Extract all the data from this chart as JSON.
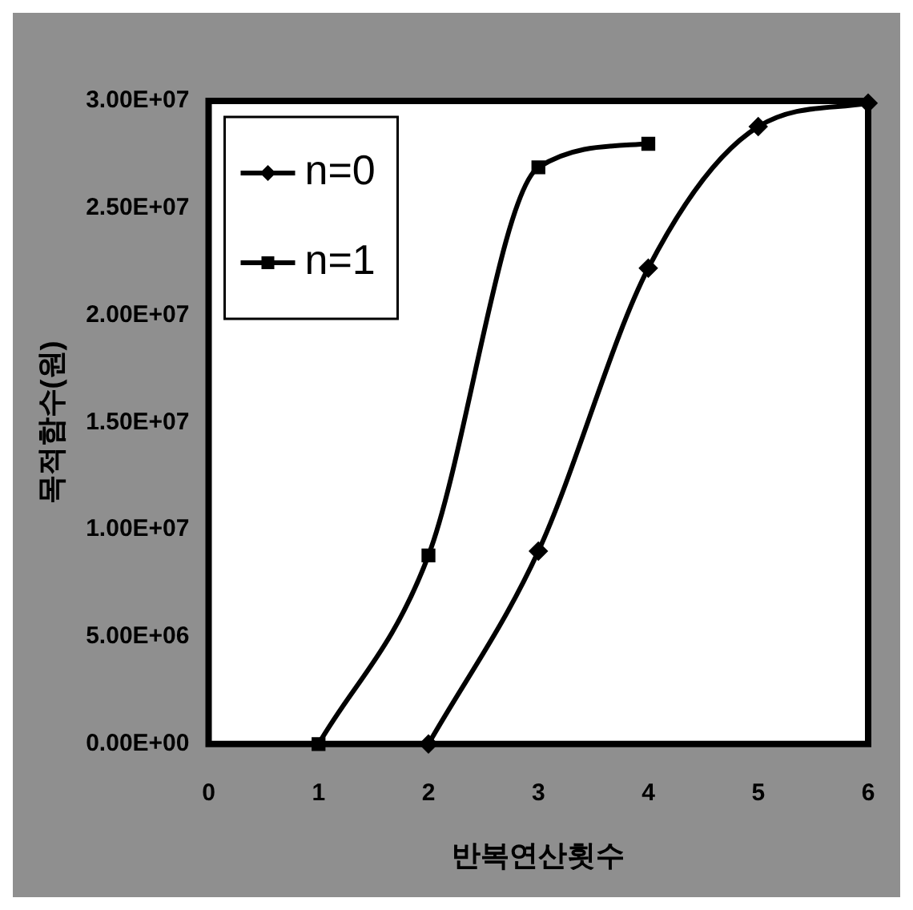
{
  "chart_data": {
    "type": "line",
    "xlabel": "반복연산횟수",
    "ylabel": "목적함수(원)",
    "xlim": [
      0,
      6
    ],
    "xticks": [
      0,
      1,
      2,
      3,
      4,
      5,
      6
    ],
    "ylim": [
      0,
      30000000
    ],
    "yticks": [
      {
        "value": 0,
        "label": "0.00E+00"
      },
      {
        "value": 5000000,
        "label": "5.00E+06"
      },
      {
        "value": 10000000,
        "label": "1.00E+07"
      },
      {
        "value": 15000000,
        "label": "1.50E+07"
      },
      {
        "value": 20000000,
        "label": "2.00E+07"
      },
      {
        "value": 25000000,
        "label": "2.50E+07"
      },
      {
        "value": 30000000,
        "label": "3.00E+07"
      }
    ],
    "grid": false,
    "legend": "top left",
    "series": [
      {
        "name": "n=0",
        "color": "#000000",
        "marker": "diamond",
        "x": [
          2,
          3,
          4,
          5,
          6
        ],
        "values": [
          0,
          9000000,
          22200000,
          28800000,
          29900000
        ]
      },
      {
        "name": "n=1",
        "color": "#000000",
        "marker": "square",
        "x": [
          1,
          2,
          3,
          4
        ],
        "values": [
          0,
          8800000,
          26900000,
          28000000
        ]
      }
    ]
  }
}
